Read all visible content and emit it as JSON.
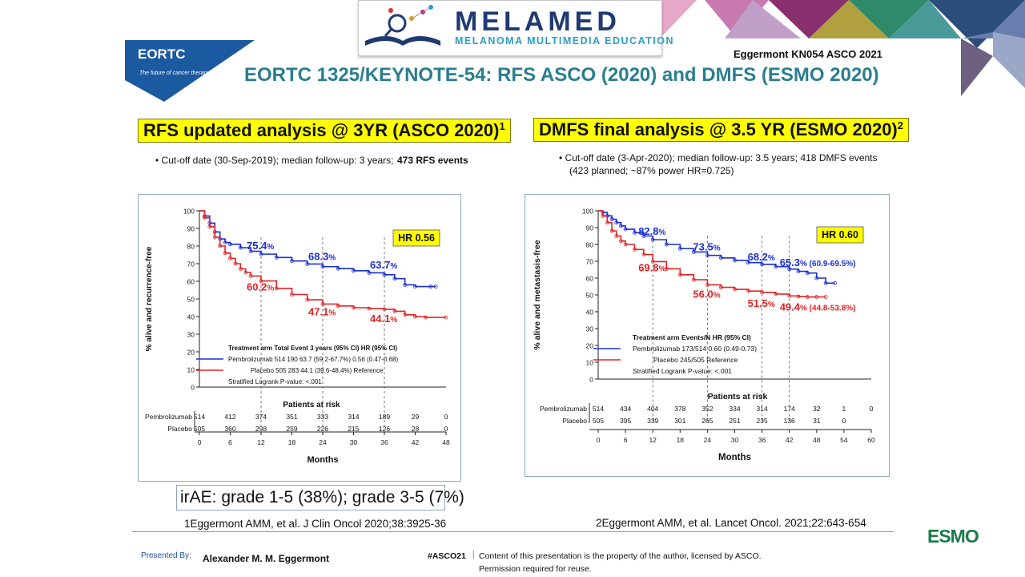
{
  "header": {
    "title": "EORTC 1325/KEYNOTE-54: RFS ASCO (2020) and DMFS (ESMO 2020)",
    "reference": "Eggermont KN054 ASCO 2021",
    "logo_main": "MELAMED",
    "logo_sub": "MELANOMA MULTIMEDIA EDUCATION",
    "eortc": "EORTC",
    "eortc_tagline": "The future of cancer therapy"
  },
  "left": {
    "heading": "RFS updated analysis @ 3YR (ASCO 2020)",
    "heading_sup": "1",
    "bullet": "• Cut-off date (30-Sep-2019); median follow-up: 3 years;",
    "events": "473 RFS events"
  },
  "right": {
    "heading": "DMFS final analysis @ 3.5 YR (ESMO 2020)",
    "heading_sup": "2",
    "bullet": "• Cut-off date (3-Apr-2020); median follow-up: 3.5 years; 418 DMFS events",
    "bullet2": "(423 planned; ~87% power HR=0.725)"
  },
  "irae": "irAE: grade 1-5 (38%); grade 3-5 (7%)",
  "citations": {
    "left": "1Eggermont AMM, et al. J Clin Oncol  2020;38:3925-36",
    "right": "2Eggermont AMM, et al. Lancet Oncol. 2021;22:643-654"
  },
  "footer": {
    "presented_by": "Presented By:",
    "presenter": "Alexander  M. M. Eggermont",
    "hashtag": "#ASCO21",
    "separator": "|",
    "copyright1": "Content of this presentation is the property of the author, licensed by ASCO.",
    "copyright2": "Permission required for reuse.",
    "esmo": "ESMO"
  },
  "colors": {
    "pembro": "#1a2fd6",
    "placebo": "#e52222",
    "title": "#2a7e8e",
    "highlight": "#ffff00"
  },
  "chart_data": [
    {
      "type": "line",
      "title": "RFS updated analysis @ 3YR (ASCO 2020)",
      "xlabel": "Months",
      "ylabel": "% alive and recurrence-free",
      "xlim": [
        0,
        48
      ],
      "ylim": [
        0,
        100
      ],
      "xticks": [
        0,
        6,
        12,
        18,
        24,
        30,
        36,
        42,
        48
      ],
      "yticks": [
        0,
        10,
        20,
        30,
        40,
        50,
        60,
        70,
        80,
        90,
        100
      ],
      "hr_box": "HR  0.56",
      "series": [
        {
          "name": "Pembrolizumab",
          "color": "#1a2fd6",
          "x": [
            0,
            1,
            2,
            3,
            4,
            5,
            6,
            8,
            10,
            12,
            15,
            18,
            21,
            24,
            27,
            30,
            33,
            36,
            38,
            40,
            42,
            45,
            46
          ],
          "y": [
            100,
            97,
            93,
            88,
            84,
            82,
            81,
            79,
            77,
            75.4,
            73.5,
            71.5,
            69.8,
            68.3,
            67.2,
            66,
            64.8,
            63.7,
            61.5,
            58,
            57,
            57,
            57
          ]
        },
        {
          "name": "Placebo",
          "color": "#e52222",
          "x": [
            0,
            1,
            2,
            3,
            4,
            5,
            6,
            7,
            8,
            9,
            10,
            12,
            15,
            18,
            21,
            24,
            27,
            30,
            33,
            36,
            38,
            40,
            42,
            44,
            48
          ],
          "y": [
            100,
            96,
            91,
            85,
            80,
            76,
            73,
            70,
            67,
            65,
            63,
            60.2,
            56,
            52.5,
            49.5,
            47.1,
            46,
            45,
            44.5,
            44.1,
            43,
            41,
            40,
            39.5,
            39.5
          ]
        }
      ],
      "annotations": [
        {
          "label": "75.4",
          "suffix": "%",
          "x": 12,
          "y": 75.4,
          "series": "Pembrolizumab"
        },
        {
          "label": "68.3",
          "suffix": "%",
          "x": 24,
          "y": 68.3,
          "series": "Pembrolizumab"
        },
        {
          "label": "63.7",
          "suffix": "%",
          "x": 36,
          "y": 63.7,
          "series": "Pembrolizumab"
        },
        {
          "label": "60.2",
          "suffix": "%",
          "x": 12,
          "y": 60.2,
          "series": "Placebo"
        },
        {
          "label": "47.1",
          "suffix": "%",
          "x": 24,
          "y": 47.1,
          "series": "Placebo"
        },
        {
          "label": "44.1",
          "suffix": "%",
          "x": 36,
          "y": 44.1,
          "series": "Placebo"
        }
      ],
      "legend_table": {
        "header": "Treatment arm   Total   Event   3 years (95% CI)    HR (95% CI)",
        "rows": [
          "Pembrolizumab   514   190   63.7 (59.2-67.7%)   0.56 (0.47-0.68)",
          "Placebo   505   283   44.1 (39.6-48.4%)   Reference"
        ],
        "footnote": "Stratified Logrank P-value: <.001"
      },
      "risk_table": {
        "title": "Patients at risk",
        "rows": [
          {
            "label": "Pembrolizumab",
            "values": [
              "514",
              "412",
              "374",
              "351",
              "333",
              "314",
              "189",
              "29",
              "0"
            ]
          },
          {
            "label": "Placebo",
            "values": [
              "505",
              "360",
              "298",
              "259",
              "226",
              "215",
              "126",
              "28",
              "0"
            ]
          }
        ]
      }
    },
    {
      "type": "line",
      "title": "DMFS final analysis @ 3.5 YR (ESMO 2020)",
      "xlabel": "Months",
      "ylabel": "% alive and metastasis-free",
      "xlim": [
        0,
        60
      ],
      "ylim": [
        0,
        100
      ],
      "xticks": [
        0,
        6,
        12,
        18,
        24,
        30,
        36,
        42,
        48,
        54,
        60
      ],
      "yticks": [
        0,
        10,
        20,
        30,
        40,
        50,
        60,
        70,
        80,
        90,
        100
      ],
      "hr_box": "HR  0.60",
      "series": [
        {
          "name": "Pembrolizumab",
          "color": "#1a2fd6",
          "x": [
            0,
            1,
            2,
            3,
            4,
            5,
            6,
            8,
            10,
            12,
            15,
            18,
            21,
            24,
            27,
            30,
            33,
            36,
            39,
            42,
            44,
            46,
            48,
            50,
            52
          ],
          "y": [
            100,
            99,
            97,
            95,
            93,
            91,
            89,
            87,
            85,
            82.8,
            80,
            77.5,
            75.5,
            73.5,
            72,
            70.5,
            69.2,
            68.2,
            66.8,
            65.3,
            64,
            63,
            60,
            57,
            57
          ]
        },
        {
          "name": "Placebo",
          "color": "#e52222",
          "x": [
            0,
            1,
            2,
            3,
            4,
            5,
            6,
            8,
            10,
            12,
            15,
            18,
            21,
            24,
            27,
            30,
            33,
            36,
            39,
            42,
            44,
            46,
            48,
            50
          ],
          "y": [
            100,
            97,
            93,
            88,
            85,
            82,
            80,
            77,
            74,
            69.8,
            65.5,
            62,
            59,
            56,
            54.5,
            53.3,
            52.3,
            51.5,
            50.5,
            49.4,
            49,
            48.8,
            48.8,
            48.8
          ]
        }
      ],
      "annotations": [
        {
          "label": "82.8",
          "suffix": "%",
          "x": 12,
          "y": 82.8,
          "series": "Pembrolizumab"
        },
        {
          "label": "73.5",
          "suffix": "%",
          "x": 24,
          "y": 73.5,
          "series": "Pembrolizumab"
        },
        {
          "label": "68.2",
          "suffix": "%",
          "x": 36,
          "y": 68.2,
          "series": "Pembrolizumab"
        },
        {
          "label": "65.3",
          "suffix": "%",
          "x": 42,
          "y": 65.3,
          "series": "Pembrolizumab",
          "ci": "(60.9-69.5%)"
        },
        {
          "label": "69.8",
          "suffix": "%",
          "x": 12,
          "y": 69.8,
          "series": "Placebo"
        },
        {
          "label": "56.0",
          "suffix": "%",
          "x": 24,
          "y": 56.0,
          "series": "Placebo"
        },
        {
          "label": "51.5",
          "suffix": "%",
          "x": 36,
          "y": 51.5,
          "series": "Placebo"
        },
        {
          "label": "49.4",
          "suffix": "%",
          "x": 42,
          "y": 49.4,
          "series": "Placebo",
          "ci": "(44.8-53.8%)"
        }
      ],
      "legend_table": {
        "header": "Treatment arm   Events/N    HR (95% CI)",
        "rows": [
          "Pembrolizumab   173/514   0.60 (0.49-0.73)",
          "Placebo   245/505   Reference"
        ],
        "footnote": "Stratified Logrank P-value: <.001"
      },
      "risk_table": {
        "title": "Patients at risk",
        "rows": [
          {
            "label": "Pembrolizumab",
            "values": [
              "514",
              "434",
              "404",
              "378",
              "352",
              "334",
              "314",
              "174",
              "32",
              "1",
              "0"
            ]
          },
          {
            "label": "Placebo",
            "values": [
              "505",
              "395",
              "339",
              "301",
              "265",
              "251",
              "235",
              "136",
              "31",
              "0",
              ""
            ]
          }
        ]
      }
    }
  ]
}
